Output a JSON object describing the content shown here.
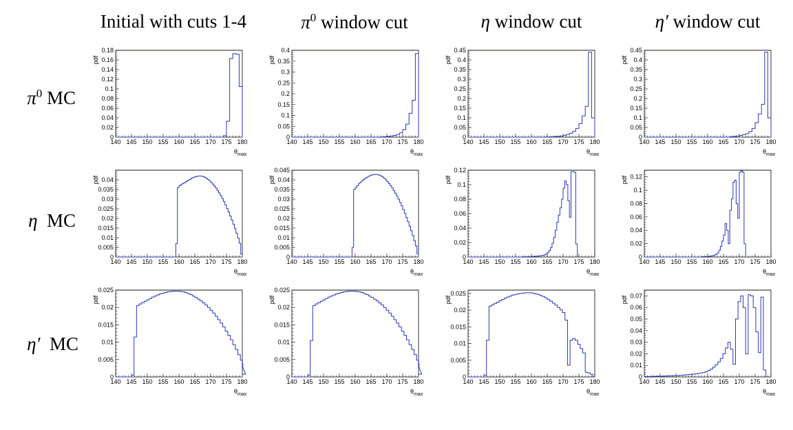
{
  "columns": [
    {
      "name": "Initial with cuts 1-4",
      "sym": "",
      "sup": "",
      "rest": "Initial with cuts 1-4"
    },
    {
      "name": "π0 window cut",
      "sym": "π",
      "sup": "0",
      "rest": " window cut"
    },
    {
      "name": "η window cut",
      "sym": "η",
      "sup": "",
      "rest": " window cut"
    },
    {
      "name": "η′ window cut",
      "sym": "η′",
      "sup": "",
      "rest": " window cut"
    }
  ],
  "rows": [
    {
      "name": "π0 MC",
      "sym": "π",
      "sup": "0",
      "rest": " MC"
    },
    {
      "name": "η MC",
      "sym": "η",
      "sup": "",
      "rest": "  MC"
    },
    {
      "name": "η′ MC",
      "sym": "η′",
      "sup": "",
      "rest": "  MC"
    }
  ],
  "axis": {
    "ylabel": "pdf",
    "xlabel": "θ",
    "xlabel_sub": "max"
  },
  "colors": {
    "line": "#2b36b5",
    "frame": "#000000",
    "top_frame": "#6b8e23"
  },
  "chart_data": [
    {
      "type": "bar",
      "row": 0,
      "col": 0,
      "xlim": [
        140,
        180
      ],
      "ylim": [
        0,
        0.18
      ],
      "yticks": [
        0,
        0.02,
        0.04,
        0.06,
        0.08,
        0.1,
        0.12,
        0.14,
        0.16,
        0.18
      ],
      "ytick_labels": [
        "0",
        "0.02",
        "0.04",
        "0.06",
        "0.08",
        "0.1",
        "0.12",
        "0.14",
        "0.16",
        "0.18"
      ],
      "xticks": [
        140,
        145,
        150,
        155,
        160,
        165,
        170,
        175,
        180
      ],
      "xlabel": "θmax",
      "ylabel": "pdf",
      "bins": {
        "start": 174,
        "width": 1,
        "values": [
          0.003,
          0.033,
          0.163,
          0.173,
          0.172,
          0.105
        ]
      }
    },
    {
      "type": "bar",
      "row": 0,
      "col": 1,
      "xlim": [
        140,
        180
      ],
      "ylim": [
        0,
        0.4
      ],
      "yticks": [
        0,
        0.05,
        0.1,
        0.15,
        0.2,
        0.25,
        0.3,
        0.35,
        0.4
      ],
      "ytick_labels": [
        "0",
        "0.05",
        "0.1",
        "0.15",
        "0.2",
        "0.25",
        "0.3",
        "0.35",
        "0.4"
      ],
      "xticks": [
        140,
        145,
        150,
        155,
        160,
        165,
        170,
        175,
        180
      ],
      "xlabel": "θmax",
      "ylabel": "pdf",
      "bins": {
        "start": 168,
        "width": 1,
        "values": [
          0.001,
          0.002,
          0.003,
          0.005,
          0.008,
          0.012,
          0.02,
          0.035,
          0.06,
          0.11,
          0.17,
          0.385
        ]
      }
    },
    {
      "type": "bar",
      "row": 0,
      "col": 2,
      "xlim": [
        140,
        180
      ],
      "ylim": [
        0,
        0.45
      ],
      "yticks": [
        0,
        0.05,
        0.1,
        0.15,
        0.2,
        0.25,
        0.3,
        0.35,
        0.4,
        0.45
      ],
      "ytick_labels": [
        "0",
        "0.05",
        "0.1",
        "0.15",
        "0.2",
        "0.25",
        "0.3",
        "0.35",
        "0.4",
        "0.45"
      ],
      "xticks": [
        140,
        145,
        150,
        155,
        160,
        165,
        170,
        175,
        180
      ],
      "xlabel": "θmax",
      "ylabel": "pdf",
      "bins": {
        "start": 164,
        "width": 1,
        "values": [
          0.001,
          0.001,
          0.002,
          0.003,
          0.004,
          0.006,
          0.009,
          0.014,
          0.02,
          0.03,
          0.045,
          0.07,
          0.11,
          0.16,
          0.44,
          0.1
        ]
      }
    },
    {
      "type": "bar",
      "row": 0,
      "col": 3,
      "xlim": [
        140,
        180
      ],
      "ylim": [
        0,
        0.45
      ],
      "yticks": [
        0,
        0.05,
        0.1,
        0.15,
        0.2,
        0.25,
        0.3,
        0.35,
        0.4,
        0.45
      ],
      "ytick_labels": [
        "0",
        "0.05",
        "0.1",
        "0.15",
        "0.2",
        "0.25",
        "0.3",
        "0.35",
        "0.4",
        "0.45"
      ],
      "xticks": [
        140,
        145,
        150,
        155,
        160,
        165,
        170,
        175,
        180
      ],
      "xlabel": "θmax",
      "ylabel": "pdf",
      "bins": {
        "start": 167,
        "width": 1,
        "values": [
          0.002,
          0.004,
          0.006,
          0.009,
          0.013,
          0.018,
          0.028,
          0.045,
          0.075,
          0.12,
          0.17,
          0.44,
          0.1
        ]
      }
    },
    {
      "type": "bar",
      "row": 1,
      "col": 0,
      "xlim": [
        140,
        180
      ],
      "ylim": [
        0,
        0.045
      ],
      "yticks": [
        0,
        0.005,
        0.01,
        0.015,
        0.02,
        0.025,
        0.03,
        0.035,
        0.04
      ],
      "ytick_labels": [
        "0",
        "0.005",
        "0.01",
        "0.015",
        "0.02",
        "0.025",
        "0.03",
        "0.035",
        "0.04"
      ],
      "xticks": [
        140,
        145,
        150,
        155,
        160,
        165,
        170,
        175,
        180
      ],
      "xlabel": "θmax",
      "ylabel": "pdf",
      "bins": {
        "start": 159,
        "width": 0.5,
        "values": [
          0.007,
          0.036,
          0.037,
          0.0375,
          0.038,
          0.0385,
          0.039,
          0.0395,
          0.04,
          0.0405,
          0.041,
          0.0413,
          0.0416,
          0.0418,
          0.042,
          0.042,
          0.0419,
          0.0417,
          0.0413,
          0.0408,
          0.0402,
          0.0395,
          0.0387,
          0.0378,
          0.0368,
          0.0357,
          0.0345,
          0.0332,
          0.0318,
          0.0303,
          0.0287,
          0.027,
          0.0252,
          0.0233,
          0.0213,
          0.0192,
          0.017,
          0.0147,
          0.0123,
          0.0098,
          0.0072,
          0.0015
        ]
      }
    },
    {
      "type": "bar",
      "row": 1,
      "col": 1,
      "xlim": [
        140,
        180
      ],
      "ylim": [
        0,
        0.045
      ],
      "yticks": [
        0,
        0.005,
        0.01,
        0.015,
        0.02,
        0.025,
        0.03,
        0.035,
        0.04,
        0.045
      ],
      "ytick_labels": [
        "0",
        "0.005",
        "0.01",
        "0.015",
        "0.02",
        "0.025",
        "0.03",
        "0.035",
        "0.04",
        "0.045"
      ],
      "xticks": [
        140,
        145,
        150,
        155,
        160,
        165,
        170,
        175,
        180
      ],
      "xlabel": "θmax",
      "ylabel": "pdf",
      "bins": {
        "start": 159,
        "width": 0.5,
        "values": [
          0.005,
          0.035,
          0.036,
          0.037,
          0.038,
          0.0388,
          0.0395,
          0.0402,
          0.0408,
          0.0413,
          0.0418,
          0.0422,
          0.0425,
          0.0427,
          0.0428,
          0.0428,
          0.0427,
          0.0424,
          0.042,
          0.0415,
          0.0408,
          0.04,
          0.0391,
          0.0381,
          0.037,
          0.0358,
          0.0345,
          0.0331,
          0.0316,
          0.03,
          0.0283,
          0.0265,
          0.0246,
          0.0226,
          0.0205,
          0.0183,
          0.016,
          0.0136,
          0.0111,
          0.0085,
          0.0058,
          0.0018
        ]
      }
    },
    {
      "type": "bar",
      "row": 1,
      "col": 2,
      "xlim": [
        140,
        180
      ],
      "ylim": [
        0,
        0.12
      ],
      "yticks": [
        0,
        0.02,
        0.04,
        0.06,
        0.08,
        0.1,
        0.12
      ],
      "ytick_labels": [
        "0",
        "0.02",
        "0.04",
        "0.06",
        "0.08",
        "0.1",
        "0.12"
      ],
      "xticks": [
        140,
        145,
        150,
        155,
        160,
        165,
        170,
        175,
        180
      ],
      "xlabel": "θmax",
      "ylabel": "pdf",
      "bins": {
        "start": 157,
        "width": 0.5,
        "values": [
          0.0003,
          0.0003,
          0.0004,
          0.0005,
          0.0005,
          0.0006,
          0.0007,
          0.0008,
          0.001,
          0.0012,
          0.0014,
          0.0017,
          0.002,
          0.0025,
          0.003,
          0.004,
          0.006,
          0.009,
          0.013,
          0.019,
          0.027,
          0.037,
          0.048,
          0.058,
          0.068,
          0.08,
          0.095,
          0.105,
          0.1,
          0.078,
          0.055,
          0.118,
          0.118,
          0.117,
          0.018
        ]
      }
    },
    {
      "type": "bar",
      "row": 1,
      "col": 3,
      "xlim": [
        140,
        180
      ],
      "ylim": [
        0,
        0.13
      ],
      "yticks": [
        0,
        0.02,
        0.04,
        0.06,
        0.08,
        0.1,
        0.12
      ],
      "ytick_labels": [
        "0",
        "0.02",
        "0.04",
        "0.06",
        "0.08",
        "0.1",
        "0.12"
      ],
      "xticks": [
        140,
        145,
        150,
        155,
        160,
        165,
        170,
        175,
        180
      ],
      "xlabel": "θmax",
      "ylabel": "pdf",
      "bins": {
        "start": 158,
        "width": 0.5,
        "values": [
          0.0005,
          0.0006,
          0.0007,
          0.0008,
          0.001,
          0.0012,
          0.0015,
          0.002,
          0.003,
          0.004,
          0.006,
          0.01,
          0.016,
          0.024,
          0.033,
          0.05,
          0.04,
          0.02,
          0.07,
          0.087,
          0.112,
          0.115,
          0.08,
          0.058,
          0.127,
          0.129,
          0.127,
          0.02
        ]
      }
    },
    {
      "type": "bar",
      "row": 2,
      "col": 0,
      "xlim": [
        140,
        180
      ],
      "ylim": [
        0,
        0.025
      ],
      "yticks": [
        0,
        0.005,
        0.01,
        0.015,
        0.02,
        0.025
      ],
      "ytick_labels": [
        "0",
        "0.005",
        "0.01",
        "0.015",
        "0.02",
        "0.025"
      ],
      "xticks": [
        140,
        145,
        150,
        155,
        160,
        165,
        170,
        175,
        180
      ],
      "xlabel": "θmax",
      "ylabel": "pdf",
      "bins": {
        "start": 145,
        "width": 0.8,
        "values": [
          0.0005,
          0.0115,
          0.0205,
          0.021,
          0.0214,
          0.0218,
          0.0222,
          0.0226,
          0.023,
          0.0233,
          0.0236,
          0.0239,
          0.0241,
          0.0243,
          0.0245,
          0.0246,
          0.0247,
          0.0247,
          0.0247,
          0.0246,
          0.0245,
          0.0243,
          0.024,
          0.0237,
          0.0233,
          0.0229,
          0.0224,
          0.0219,
          0.0213,
          0.0207,
          0.02,
          0.0192,
          0.0184,
          0.0175,
          0.0165,
          0.0155,
          0.0144,
          0.0132,
          0.012,
          0.0107,
          0.0093,
          0.0079,
          0.0064,
          0.0048,
          0.0032,
          0.0008
        ]
      }
    },
    {
      "type": "bar",
      "row": 2,
      "col": 1,
      "xlim": [
        140,
        180
      ],
      "ylim": [
        0,
        0.025
      ],
      "yticks": [
        0,
        0.005,
        0.01,
        0.015,
        0.02,
        0.025
      ],
      "ytick_labels": [
        "0",
        "0.005",
        "0.01",
        "0.015",
        "0.02",
        "0.025"
      ],
      "xticks": [
        140,
        145,
        150,
        155,
        160,
        165,
        170,
        175,
        180
      ],
      "xlabel": "θmax",
      "ylabel": "pdf",
      "bins": {
        "start": 145,
        "width": 0.8,
        "values": [
          0.0005,
          0.0105,
          0.0205,
          0.021,
          0.0214,
          0.0218,
          0.0222,
          0.0226,
          0.023,
          0.0233,
          0.0236,
          0.0239,
          0.0241,
          0.0243,
          0.0245,
          0.0246,
          0.0247,
          0.0247,
          0.0247,
          0.0246,
          0.0245,
          0.0243,
          0.024,
          0.0237,
          0.0233,
          0.0229,
          0.0224,
          0.0219,
          0.0213,
          0.0207,
          0.02,
          0.0192,
          0.0184,
          0.0175,
          0.0165,
          0.0155,
          0.0144,
          0.0132,
          0.012,
          0.0107,
          0.0093,
          0.0079,
          0.0064,
          0.0048,
          0.0032,
          0.0008
        ]
      }
    },
    {
      "type": "bar",
      "row": 2,
      "col": 2,
      "xlim": [
        140,
        180
      ],
      "ylim": [
        0,
        0.026
      ],
      "yticks": [
        0,
        0.005,
        0.01,
        0.015,
        0.02,
        0.025
      ],
      "ytick_labels": [
        "0",
        "0.005",
        "0.01",
        "0.015",
        "0.02",
        "0.025"
      ],
      "xticks": [
        140,
        145,
        150,
        155,
        160,
        165,
        170,
        175,
        180
      ],
      "xlabel": "θmax",
      "ylabel": "pdf",
      "bins": {
        "start": 145,
        "width": 0.8,
        "values": [
          0.0005,
          0.011,
          0.0212,
          0.0216,
          0.022,
          0.0224,
          0.0228,
          0.0232,
          0.0236,
          0.0239,
          0.0242,
          0.0245,
          0.0247,
          0.0249,
          0.025,
          0.0251,
          0.0252,
          0.0252,
          0.0252,
          0.0251,
          0.0249,
          0.0247,
          0.0244,
          0.0241,
          0.0237,
          0.0232,
          0.0227,
          0.0221,
          0.0215,
          0.0208,
          0.0201,
          0.0193,
          0.017,
          0.0035,
          0.011,
          0.0115,
          0.011,
          0.0098,
          0.0085,
          0.0072,
          0.0014,
          0.0012,
          0.0008
        ]
      }
    },
    {
      "type": "bar",
      "row": 2,
      "col": 3,
      "xlim": [
        140,
        180
      ],
      "ylim": [
        0,
        0.075
      ],
      "yticks": [
        0,
        0.01,
        0.02,
        0.03,
        0.04,
        0.05,
        0.06,
        0.07
      ],
      "ytick_labels": [
        "0",
        "0.01",
        "0.02",
        "0.03",
        "0.04",
        "0.05",
        "0.06",
        "0.07"
      ],
      "xticks": [
        140,
        145,
        150,
        155,
        160,
        165,
        170,
        175,
        180
      ],
      "xlabel": "θmax",
      "ylabel": "pdf",
      "bins": {
        "start": 140,
        "width": 0.8,
        "values": [
          0.0003,
          0.0004,
          0.0004,
          0.0005,
          0.0005,
          0.0006,
          0.0006,
          0.0007,
          0.0008,
          0.0009,
          0.001,
          0.0011,
          0.0012,
          0.0013,
          0.0014,
          0.0016,
          0.0018,
          0.002,
          0.0022,
          0.0024,
          0.0027,
          0.003,
          0.0034,
          0.0038,
          0.0045,
          0.0055,
          0.0068,
          0.0085,
          0.0105,
          0.013,
          0.016,
          0.02,
          0.025,
          0.03,
          0.024,
          0.011,
          0.05,
          0.065,
          0.07,
          0.06,
          0.02,
          0.071,
          0.07,
          0.06,
          0.039,
          0.021,
          0.069,
          0.006
        ]
      }
    }
  ]
}
